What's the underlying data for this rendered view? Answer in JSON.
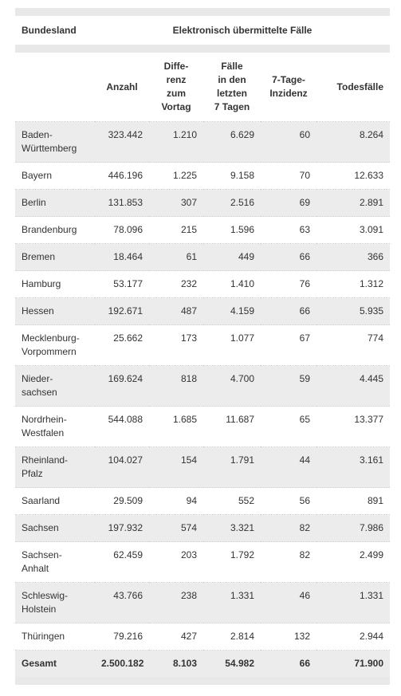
{
  "table": {
    "header": [
      "Bundesland",
      "Elektronisch übermittelte Fälle"
    ],
    "columns": [
      "",
      "Anzahl",
      "Diffe-\nrenz\nzum\nVortag",
      "Fälle\nin den\nletzten\n7 Tagen",
      "7-Tage-\nInzidenz",
      "Todesfälle"
    ],
    "rows": [
      [
        "Baden-\nWürttemberg",
        "323.442",
        "1.210",
        "6.629",
        "60",
        "8.264"
      ],
      [
        "Bayern",
        "446.196",
        "1.225",
        "9.158",
        "70",
        "12.633"
      ],
      [
        "Berlin",
        "131.853",
        "307",
        "2.516",
        "69",
        "2.891"
      ],
      [
        "Brandenburg",
        "78.096",
        "215",
        "1.596",
        "63",
        "3.091"
      ],
      [
        "Bremen",
        "18.464",
        "61",
        "449",
        "66",
        "366"
      ],
      [
        "Hamburg",
        "53.177",
        "232",
        "1.410",
        "76",
        "1.312"
      ],
      [
        "Hessen",
        "192.671",
        "487",
        "4.159",
        "66",
        "5.935"
      ],
      [
        "Mecklenburg-\nVorpommern",
        "25.662",
        "173",
        "1.077",
        "67",
        "774"
      ],
      [
        "Nieder-\nsachsen",
        "169.624",
        "818",
        "4.700",
        "59",
        "4.445"
      ],
      [
        "Nordrhein-\nWestfalen",
        "544.088",
        "1.685",
        "11.687",
        "65",
        "13.377"
      ],
      [
        "Rheinland-\nPfalz",
        "104.027",
        "154",
        "1.791",
        "44",
        "3.161"
      ],
      [
        "Saarland",
        "29.509",
        "94",
        "552",
        "56",
        "891"
      ],
      [
        "Sachsen",
        "197.932",
        "574",
        "3.321",
        "82",
        "7.986"
      ],
      [
        "Sachsen-\nAnhalt",
        "62.459",
        "203",
        "1.792",
        "82",
        "2.499"
      ],
      [
        "Schleswig-\nHolstein",
        "43.766",
        "238",
        "1.331",
        "46",
        "1.331"
      ],
      [
        "Thüringen",
        "79.216",
        "427",
        "2.814",
        "132",
        "2.944"
      ]
    ],
    "total": [
      "Gesamt",
      "2.500.182",
      "8.103",
      "54.982",
      "66",
      "71.900"
    ]
  }
}
